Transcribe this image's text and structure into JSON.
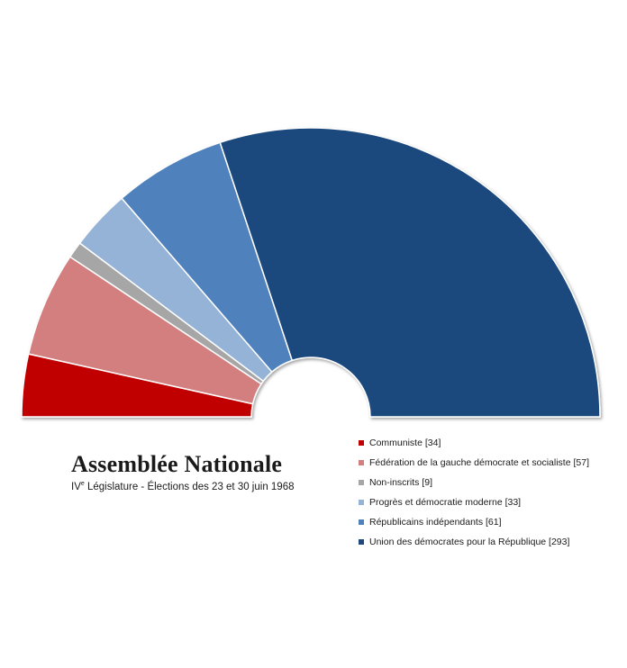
{
  "chart_data": {
    "type": "pie",
    "variant": "parliament-hemicycle",
    "title": "Assemblée Nationale",
    "subtitle_ordinal": "IV",
    "subtitle_superscript": "e",
    "subtitle_rest": " Législature - Élections des 23 et 30 juin 1968",
    "total_seats": 487,
    "legend_position": "bottom-right",
    "series": [
      {
        "name": "Communiste",
        "label": "Communiste [34]",
        "value": 34,
        "color": "#c00000"
      },
      {
        "name": "Fédération de la gauche démocrate et socialiste",
        "label": "Fédération de la gauche démocrate et socialiste [57]",
        "value": 57,
        "color": "#d47f7f"
      },
      {
        "name": "Non-inscrits",
        "label": "Non-inscrits [9]",
        "value": 9,
        "color": "#a6a6a6"
      },
      {
        "name": "Progrès et démocratie moderne",
        "label": "Progrès et démocratie moderne [33]",
        "value": 33,
        "color": "#95b3d7"
      },
      {
        "name": "Républicains indépendants",
        "label": "Républicains indépendants [61]",
        "value": 61,
        "color": "#4f81bd"
      },
      {
        "name": "Union des démocrates pour la République",
        "label": "Union des démocrates pour la République [293]",
        "value": 293,
        "color": "#1f497d"
      }
    ]
  }
}
